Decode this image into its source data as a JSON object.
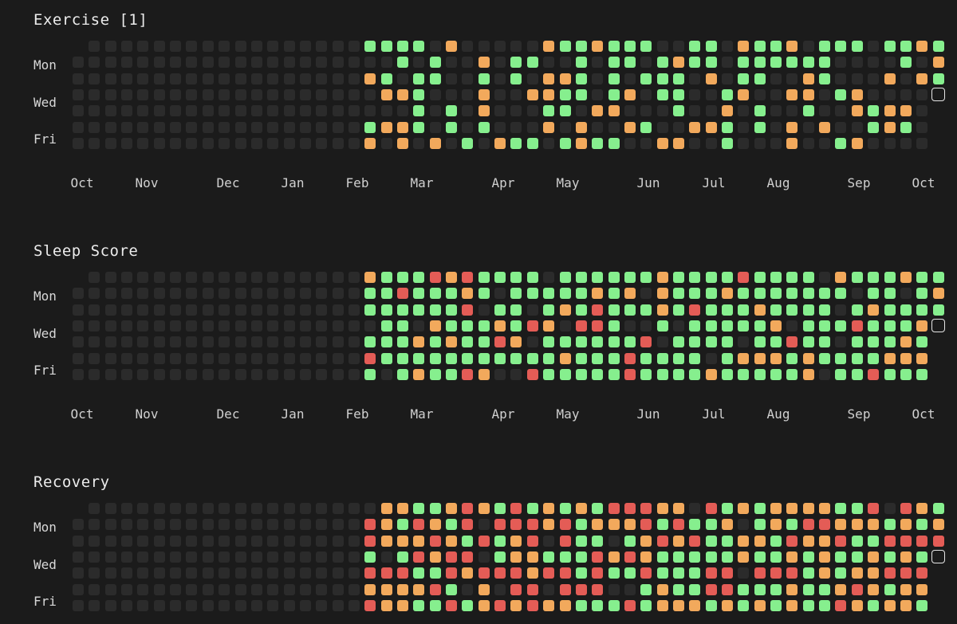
{
  "sections": [
    {
      "title": "Exercise [1]"
    },
    {
      "title": "Sleep Score"
    },
    {
      "title": "Recovery"
    }
  ],
  "day_labels": [
    "Mon",
    "Wed",
    "Fri"
  ],
  "months": [
    "Oct",
    "Nov",
    "Dec",
    "Jan",
    "Feb",
    "Mar",
    "Apr",
    "May",
    "Jun",
    "Jul",
    "Aug",
    "Sep",
    "Oct"
  ],
  "colors": {
    "empty": "#2b2b2b",
    "good": "#86ef8e",
    "medium": "#f2a95c",
    "poor": "#e45c56",
    "background": "#1b1b1b"
  }
}
